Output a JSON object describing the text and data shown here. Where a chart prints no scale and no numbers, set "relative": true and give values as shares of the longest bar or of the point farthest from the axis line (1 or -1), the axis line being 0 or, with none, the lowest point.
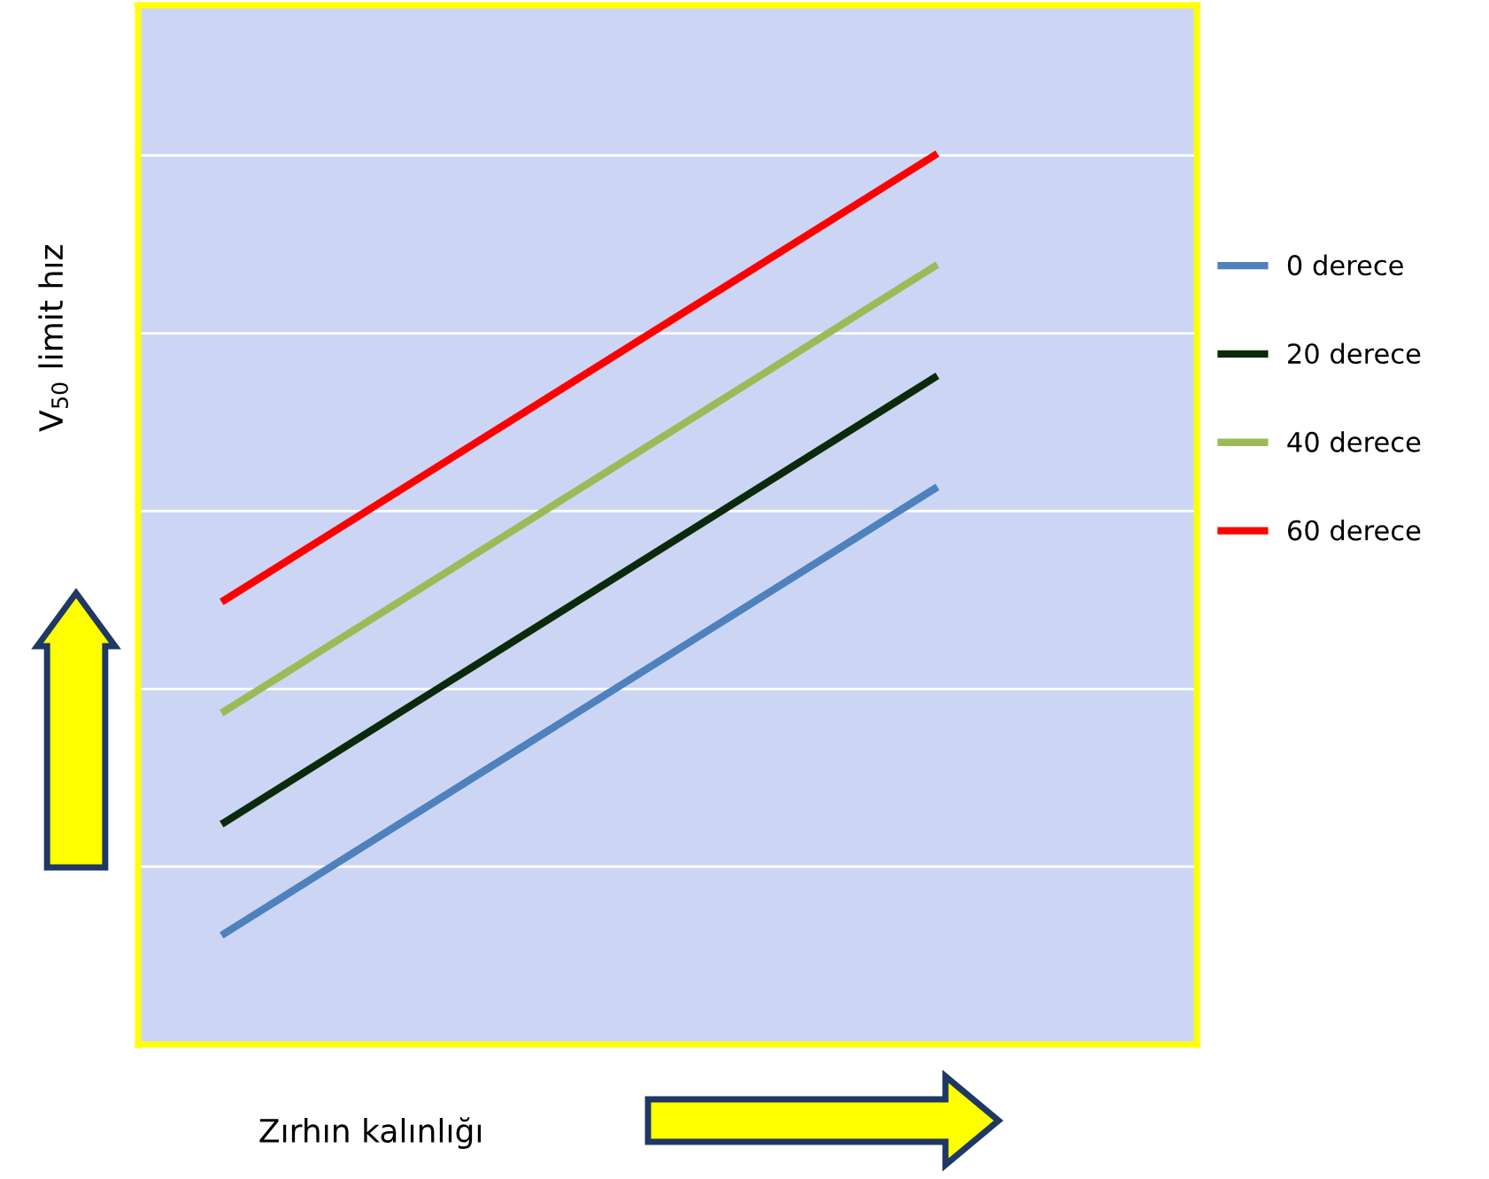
{
  "chart_data": {
    "type": "line",
    "relative": true,
    "xlabel": "Zırhın kalınlığı",
    "ylabel": "V$_{50}$ limit hız",
    "categories": [
      null,
      null
    ],
    "grid": "y",
    "legend": "right",
    "marker": "none",
    "line_style": "solid",
    "series": [
      {
        "name": "0 derece",
        "color": "#4f81bd",
        "values": [
          0.125,
          0.625
        ]
      },
      {
        "name": "20 derece",
        "color": "#0b2a0b",
        "values": [
          0.25,
          0.75
        ]
      },
      {
        "name": "40 derece",
        "color": "#9bbb59",
        "values": [
          0.375,
          0.875
        ]
      },
      {
        "name": "60 derece",
        "color": "#ff0000",
        "values": [
          0.5,
          1.0
        ]
      }
    ]
  }
}
